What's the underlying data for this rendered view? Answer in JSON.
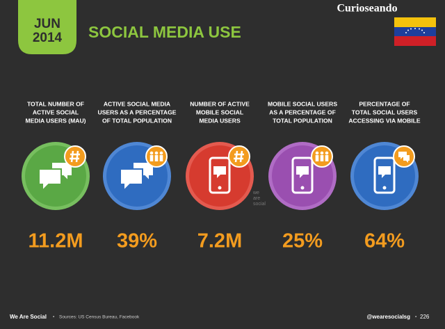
{
  "header": {
    "month": "JUN",
    "year": "2014",
    "title": "SOCIAL MEDIA USE",
    "brand": "Curioseando"
  },
  "stats": [
    {
      "label_lines": [
        "TOTAL NUMBER OF",
        "ACTIVE SOCIAL",
        "MEDIA USERS (MAU)"
      ],
      "value": "11.2M"
    },
    {
      "label_lines": [
        "ACTIVE SOCIAL MEDIA",
        "USERS AS A PERCENTAGE",
        "OF TOTAL POPULATION"
      ],
      "value": "39%"
    },
    {
      "label_lines": [
        "NUMBER OF ACTIVE",
        "MOBILE SOCIAL",
        "MEDIA USERS"
      ],
      "value": "7.2M"
    },
    {
      "label_lines": [
        "MOBILE SOCIAL USERS",
        "AS A PERCENTAGE OF",
        "TOTAL POPULATION"
      ],
      "value": "25%"
    },
    {
      "label_lines": [
        "PERCENTAGE OF",
        "TOTAL SOCIAL USERS",
        "ACCESSING VIA MOBILE"
      ],
      "value": "64%"
    }
  ],
  "watermark": [
    "we",
    "are",
    "social"
  ],
  "footer": {
    "brand": "We Are Social",
    "sources": "Sources: US Census Bureau, Facebook",
    "handle": "@wearesocialsg",
    "page": "226"
  }
}
